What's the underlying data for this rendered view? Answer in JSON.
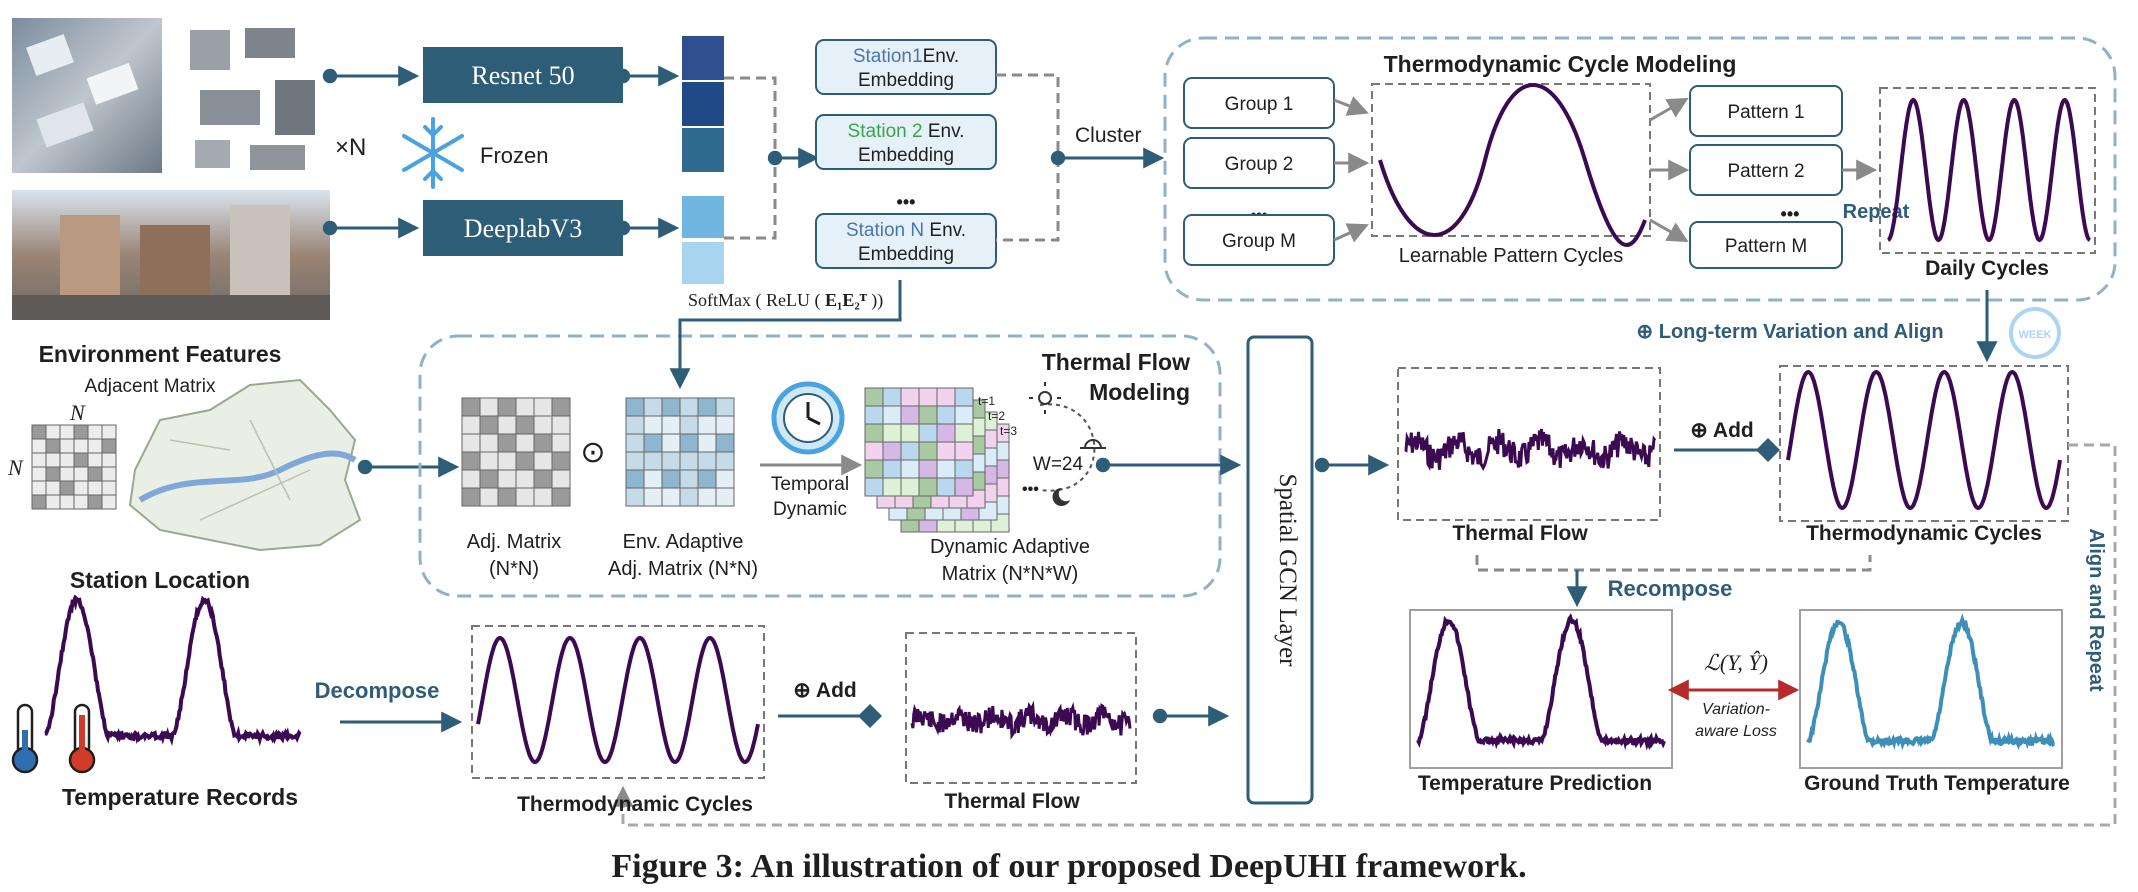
{
  "caption": "Figure 3: An illustration of our proposed DeepUHI framework.",
  "environment": {
    "label": "Environment Features",
    "multiplier": "×N",
    "frozen": "Frozen",
    "resnet": "Resnet 50",
    "deeplab": "DeeplabV3",
    "station1_name": "Station1",
    "station2_name": "Station 2",
    "stationN_name": "Station N",
    "env_suffix": "Env.",
    "embedding": "Embedding",
    "ellipsis": "•••",
    "softmax": "SoftMax",
    "relu": "ReLU",
    "e1e2": "E₁E₂ᵀ",
    "cluster": "Cluster"
  },
  "thermo_cycle": {
    "title": "Thermodynamic Cycle Modeling",
    "groups": [
      "Group 1",
      "Group 2",
      "Group M"
    ],
    "group_ellipsis": "•••",
    "learnable": "Learnable Pattern Cycles",
    "patterns": [
      "Pattern 1",
      "Pattern 2",
      "Pattern M"
    ],
    "pattern_ellipsis": "•••",
    "repeat": "Repeat",
    "daily": "Daily Cycles"
  },
  "long_term": "⊕ Long-term Variation and Align",
  "week_icon": "WEEK",
  "adjacent": {
    "label": "Adjacent Matrix",
    "n_top": "N",
    "n_left": "N",
    "station_location": "Station Location"
  },
  "thermal_flow_modeling": {
    "title_line1": "Thermal Flow",
    "title_line2": "Modeling",
    "adj_label1": "Adj. Matrix",
    "adj_label2": "(N*N)",
    "odot": "⊙",
    "env_adapt1": "Env. Adaptive",
    "env_adapt2": "Adj. Matrix (N*N)",
    "temporal1": "Temporal",
    "temporal2": "Dynamic",
    "t1": "t=1",
    "t2": "t=2",
    "t3": "t=3",
    "w24": "W=24",
    "dyn1": "Dynamic Adaptive",
    "dyn2": "Matrix (N*N*W)"
  },
  "gcn": "Spatial GCN Layer",
  "right": {
    "thermal_flow": "Thermal Flow",
    "add": "⊕ Add",
    "thermo_cycles": "Thermodynamic Cycles",
    "recompose": "Recompose",
    "align_repeat": "Align and Repeat",
    "loss": "ℒ(Y, Ŷ)",
    "variation1": "Variation-",
    "variation2": "aware Loss",
    "prediction": "Temperature Prediction",
    "ground_truth": "Ground Truth Temperature"
  },
  "bottom": {
    "temperature_records": "Temperature Records",
    "decompose": "Decompose",
    "thermo_cycles": "Thermodynamic Cycles",
    "add": "⊕ Add",
    "thermal_flow": "Thermal Flow"
  },
  "colors": {
    "navy": "#2e5d78",
    "purple": "#3b0a52",
    "gt_blue": "#3d8fb8",
    "dash": "#8fb1c9",
    "station_blue": "#4a76b0",
    "station_green": "#3da34a",
    "loss_red": "#b52a2a"
  }
}
